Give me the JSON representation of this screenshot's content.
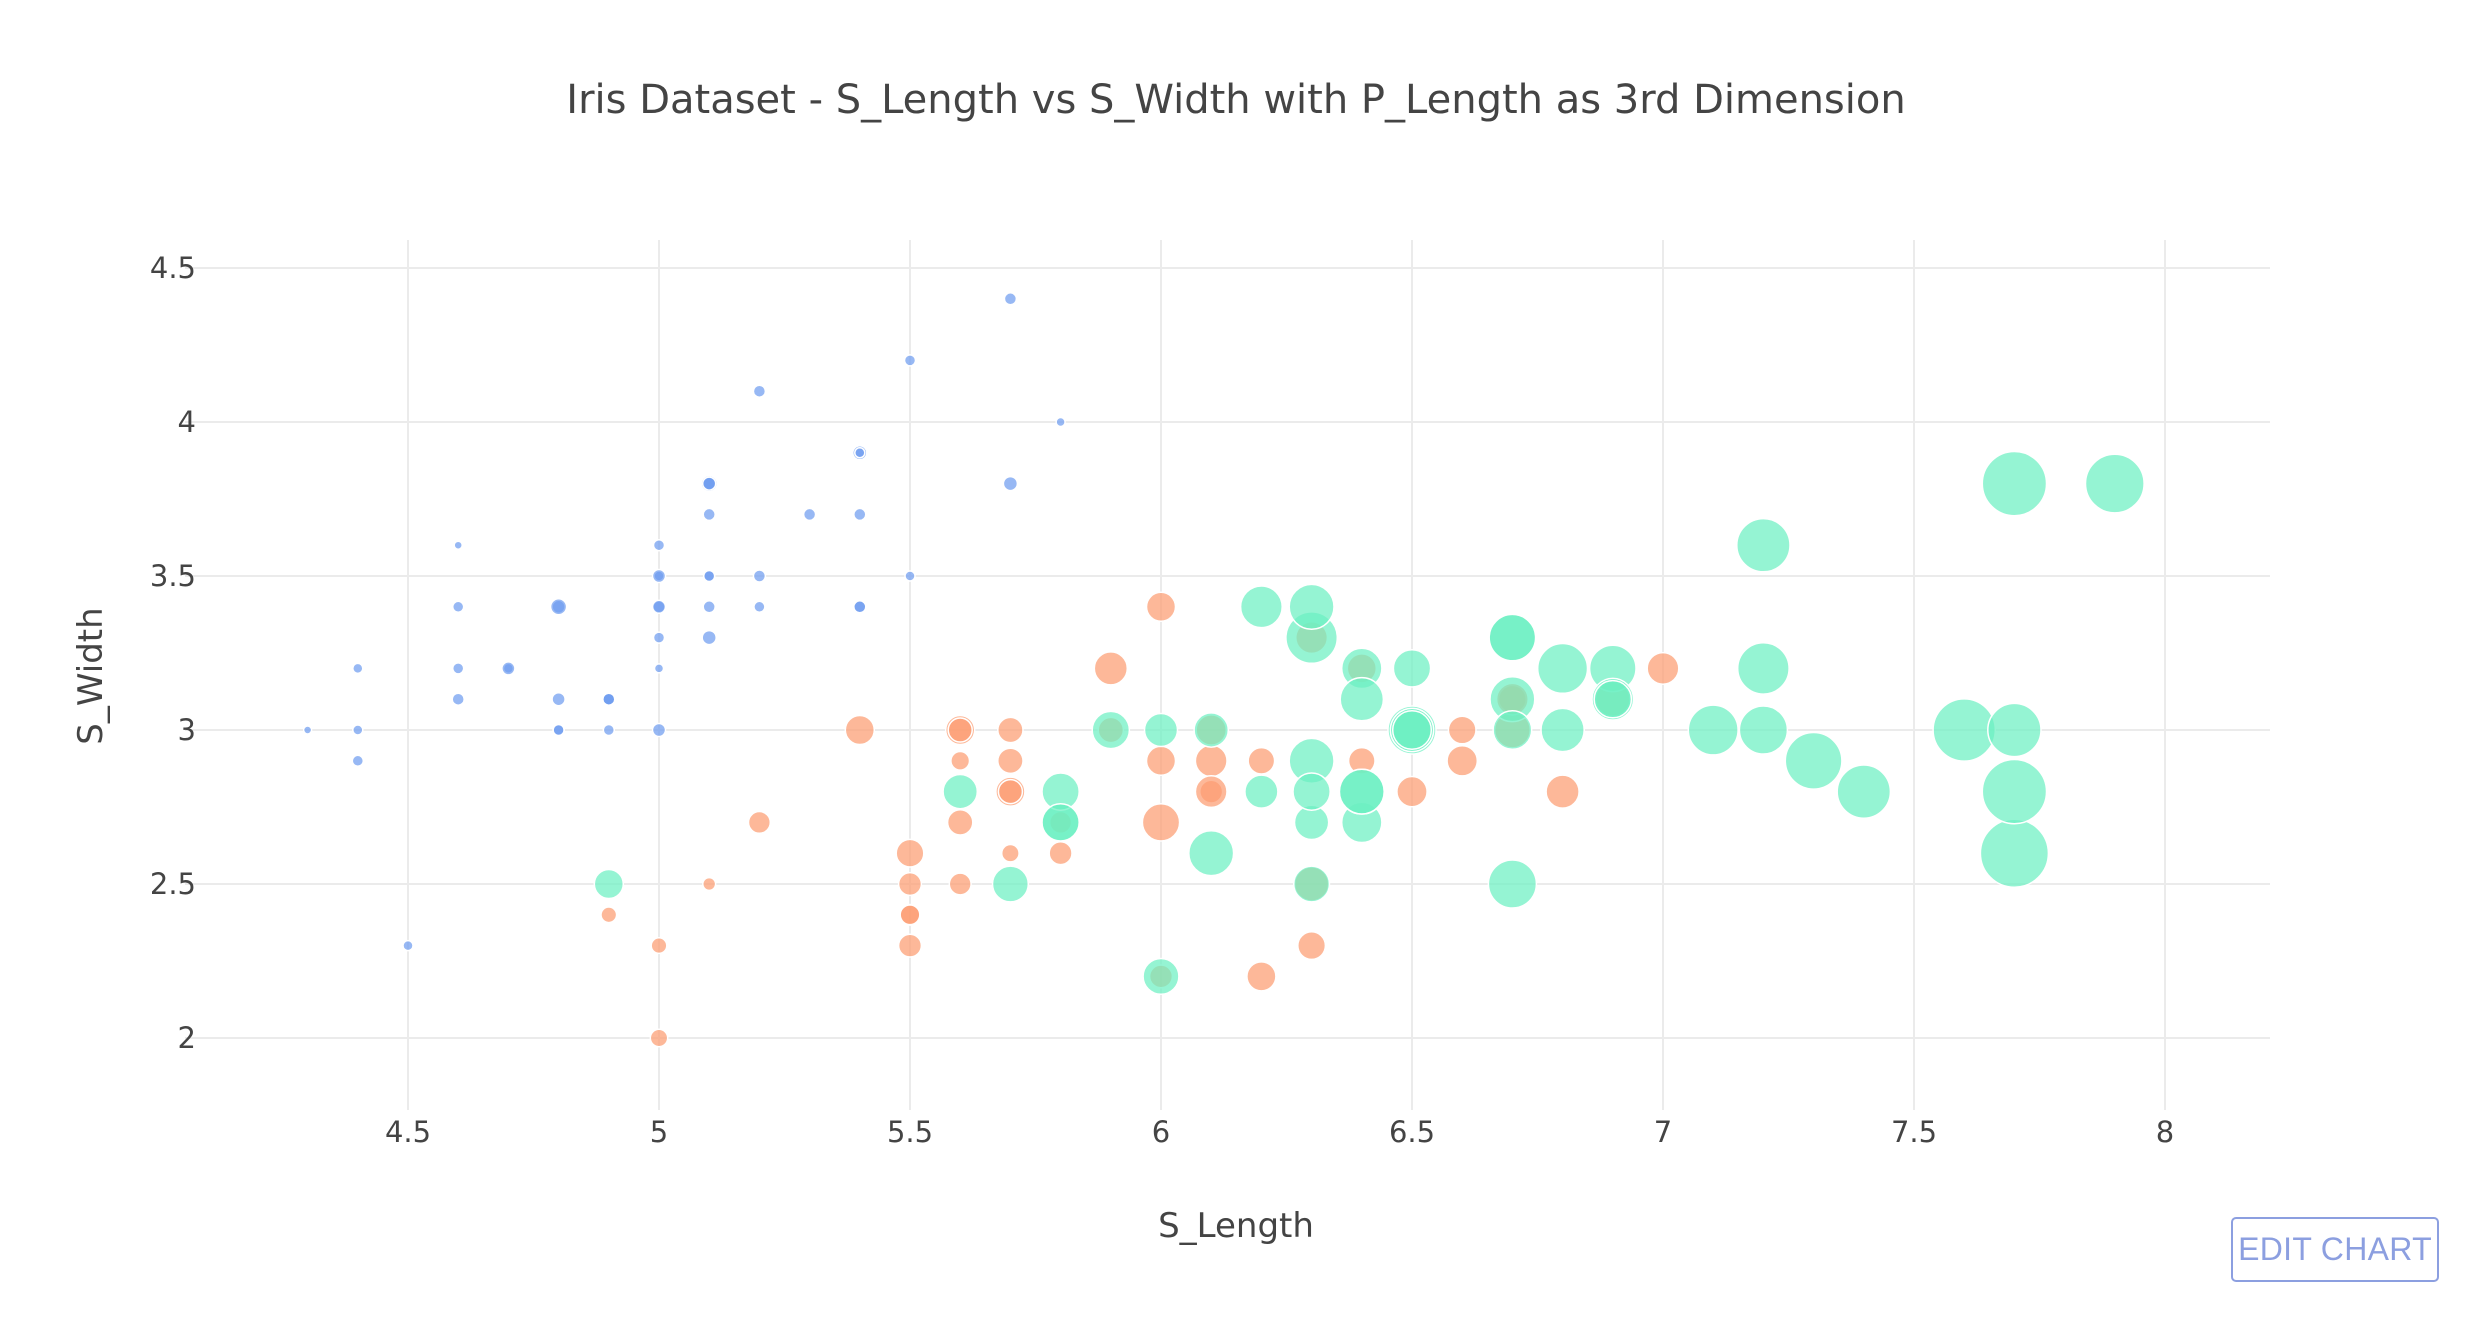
{
  "chart_data": {
    "type": "scatter",
    "title": "Iris Dataset - S_Length vs S_Width with P_Length as 3rd Dimension",
    "xlabel": "S_Length",
    "ylabel": "S_Width",
    "xlim": [
      4.1,
      8.2
    ],
    "ylim": [
      1.8,
      4.6
    ],
    "x_ticks": [
      "4.5",
      "5",
      "5.5",
      "6",
      "6.5",
      "7",
      "7.5",
      "8"
    ],
    "y_ticks": [
      "2",
      "2.5",
      "3",
      "3.5",
      "4",
      "4.5"
    ],
    "grid": true,
    "size_dimension": "P_Length",
    "series": [
      {
        "color": "#6f9cf0",
        "points": [
          [
            5.1,
            3.5,
            1.4
          ],
          [
            4.9,
            3.0,
            1.4
          ],
          [
            4.7,
            3.2,
            1.3
          ],
          [
            4.6,
            3.1,
            1.5
          ],
          [
            5.0,
            3.6,
            1.4
          ],
          [
            5.4,
            3.9,
            1.7
          ],
          [
            4.6,
            3.4,
            1.4
          ],
          [
            5.0,
            3.4,
            1.5
          ],
          [
            4.4,
            2.9,
            1.4
          ],
          [
            4.9,
            3.1,
            1.5
          ],
          [
            5.4,
            3.7,
            1.5
          ],
          [
            4.8,
            3.4,
            1.6
          ],
          [
            4.8,
            3.0,
            1.4
          ],
          [
            4.3,
            3.0,
            1.1
          ],
          [
            5.8,
            4.0,
            1.2
          ],
          [
            5.7,
            4.4,
            1.5
          ],
          [
            5.4,
            3.9,
            1.3
          ],
          [
            5.1,
            3.5,
            1.4
          ],
          [
            5.7,
            3.8,
            1.7
          ],
          [
            5.1,
            3.8,
            1.5
          ],
          [
            5.4,
            3.4,
            1.7
          ],
          [
            5.1,
            3.7,
            1.5
          ],
          [
            4.6,
            3.6,
            1.0
          ],
          [
            5.1,
            3.3,
            1.7
          ],
          [
            4.8,
            3.4,
            1.9
          ],
          [
            5.0,
            3.0,
            1.6
          ],
          [
            5.0,
            3.4,
            1.6
          ],
          [
            5.2,
            3.5,
            1.5
          ],
          [
            5.2,
            3.4,
            1.4
          ],
          [
            4.7,
            3.2,
            1.6
          ],
          [
            4.8,
            3.1,
            1.6
          ],
          [
            5.4,
            3.4,
            1.5
          ],
          [
            5.2,
            4.1,
            1.5
          ],
          [
            5.5,
            4.2,
            1.4
          ],
          [
            4.9,
            3.1,
            1.5
          ],
          [
            5.0,
            3.2,
            1.2
          ],
          [
            5.5,
            3.5,
            1.3
          ],
          [
            4.9,
            3.1,
            1.5
          ],
          [
            4.4,
            3.0,
            1.3
          ],
          [
            5.1,
            3.4,
            1.5
          ],
          [
            5.0,
            3.5,
            1.3
          ],
          [
            4.5,
            2.3,
            1.3
          ],
          [
            4.4,
            3.2,
            1.3
          ],
          [
            5.0,
            3.5,
            1.6
          ],
          [
            5.1,
            3.8,
            1.9
          ],
          [
            4.8,
            3.0,
            1.4
          ],
          [
            5.1,
            3.8,
            1.6
          ],
          [
            4.6,
            3.2,
            1.4
          ],
          [
            5.3,
            3.7,
            1.5
          ],
          [
            5.0,
            3.3,
            1.4
          ]
        ]
      },
      {
        "color": "#fc9c72",
        "points": [
          [
            7.0,
            3.2,
            4.7
          ],
          [
            6.4,
            3.2,
            4.5
          ],
          [
            6.9,
            3.1,
            4.9
          ],
          [
            5.5,
            2.3,
            4.0
          ],
          [
            6.5,
            2.8,
            4.6
          ],
          [
            5.7,
            2.8,
            4.5
          ],
          [
            6.3,
            3.3,
            4.7
          ],
          [
            4.9,
            2.4,
            3.3
          ],
          [
            6.6,
            2.9,
            4.6
          ],
          [
            5.2,
            2.7,
            3.9
          ],
          [
            5.0,
            2.0,
            3.5
          ],
          [
            5.9,
            3.0,
            4.2
          ],
          [
            6.0,
            2.2,
            4.0
          ],
          [
            6.1,
            2.9,
            4.7
          ],
          [
            5.6,
            2.9,
            3.6
          ],
          [
            6.7,
            3.1,
            4.4
          ],
          [
            5.6,
            3.0,
            4.5
          ],
          [
            5.8,
            2.7,
            4.1
          ],
          [
            6.2,
            2.2,
            4.5
          ],
          [
            5.6,
            2.5,
            3.9
          ],
          [
            5.9,
            3.2,
            4.8
          ],
          [
            6.1,
            2.8,
            4.0
          ],
          [
            6.3,
            2.5,
            4.9
          ],
          [
            6.1,
            2.8,
            4.7
          ],
          [
            6.4,
            2.9,
            4.3
          ],
          [
            6.6,
            3.0,
            4.4
          ],
          [
            6.8,
            2.8,
            4.8
          ],
          [
            6.7,
            3.0,
            5.0
          ],
          [
            6.0,
            2.9,
            4.5
          ],
          [
            5.7,
            2.6,
            3.5
          ],
          [
            5.5,
            2.4,
            3.8
          ],
          [
            5.5,
            2.4,
            3.7
          ],
          [
            5.8,
            2.7,
            3.9
          ],
          [
            6.0,
            2.7,
            5.1
          ],
          [
            5.4,
            3.0,
            4.5
          ],
          [
            6.0,
            3.4,
            4.5
          ],
          [
            6.7,
            3.1,
            4.7
          ],
          [
            6.3,
            2.3,
            4.4
          ],
          [
            5.6,
            3.0,
            4.1
          ],
          [
            5.5,
            2.5,
            4.0
          ],
          [
            5.5,
            2.6,
            4.4
          ],
          [
            6.1,
            3.0,
            4.6
          ],
          [
            5.8,
            2.6,
            4.0
          ],
          [
            5.0,
            2.3,
            3.3
          ],
          [
            5.6,
            2.7,
            4.2
          ],
          [
            5.7,
            3.0,
            4.2
          ],
          [
            5.7,
            2.9,
            4.2
          ],
          [
            6.2,
            2.9,
            4.3
          ],
          [
            5.1,
            2.5,
            3.0
          ],
          [
            5.7,
            2.8,
            4.1
          ]
        ]
      },
      {
        "color": "#6cf0c2",
        "points": [
          [
            6.3,
            3.3,
            6.0
          ],
          [
            5.8,
            2.7,
            5.1
          ],
          [
            7.1,
            3.0,
            5.9
          ],
          [
            6.3,
            2.9,
            5.6
          ],
          [
            6.5,
            3.0,
            5.8
          ],
          [
            7.6,
            3.0,
            6.6
          ],
          [
            4.9,
            2.5,
            4.5
          ],
          [
            7.3,
            2.9,
            6.3
          ],
          [
            6.7,
            2.5,
            5.8
          ],
          [
            7.2,
            3.6,
            6.1
          ],
          [
            6.5,
            3.2,
            5.1
          ],
          [
            6.4,
            2.7,
            5.3
          ],
          [
            6.8,
            3.0,
            5.5
          ],
          [
            5.7,
            2.5,
            5.0
          ],
          [
            5.8,
            2.8,
            5.1
          ],
          [
            6.4,
            3.2,
            5.3
          ],
          [
            6.5,
            3.0,
            5.5
          ],
          [
            7.7,
            3.8,
            6.7
          ],
          [
            7.7,
            2.6,
            6.9
          ],
          [
            6.0,
            2.2,
            5.0
          ],
          [
            6.9,
            3.2,
            5.7
          ],
          [
            5.6,
            2.8,
            4.9
          ],
          [
            7.7,
            2.8,
            6.7
          ],
          [
            6.3,
            2.7,
            4.9
          ],
          [
            6.7,
            3.3,
            5.7
          ],
          [
            7.2,
            3.2,
            6.0
          ],
          [
            6.2,
            2.8,
            4.8
          ],
          [
            6.1,
            3.0,
            4.9
          ],
          [
            6.4,
            2.8,
            5.6
          ],
          [
            7.2,
            3.0,
            5.8
          ],
          [
            7.4,
            2.8,
            6.1
          ],
          [
            7.9,
            3.8,
            6.4
          ],
          [
            6.4,
            2.8,
            5.6
          ],
          [
            6.3,
            2.8,
            5.1
          ],
          [
            6.1,
            2.6,
            5.6
          ],
          [
            7.7,
            3.0,
            6.1
          ],
          [
            6.3,
            3.4,
            5.6
          ],
          [
            6.4,
            3.1,
            5.5
          ],
          [
            6.0,
            3.0,
            4.8
          ],
          [
            6.9,
            3.1,
            5.4
          ],
          [
            6.7,
            3.1,
            5.6
          ],
          [
            6.9,
            3.1,
            5.1
          ],
          [
            5.8,
            2.7,
            5.1
          ],
          [
            6.8,
            3.2,
            5.9
          ],
          [
            6.7,
            3.3,
            5.7
          ],
          [
            6.7,
            3.0,
            5.2
          ],
          [
            6.3,
            2.5,
            5.0
          ],
          [
            6.5,
            3.0,
            5.2
          ],
          [
            6.2,
            3.4,
            5.4
          ],
          [
            5.9,
            3.0,
            5.1
          ]
        ]
      }
    ]
  },
  "edit_button": {
    "label": "EDIT CHART"
  }
}
